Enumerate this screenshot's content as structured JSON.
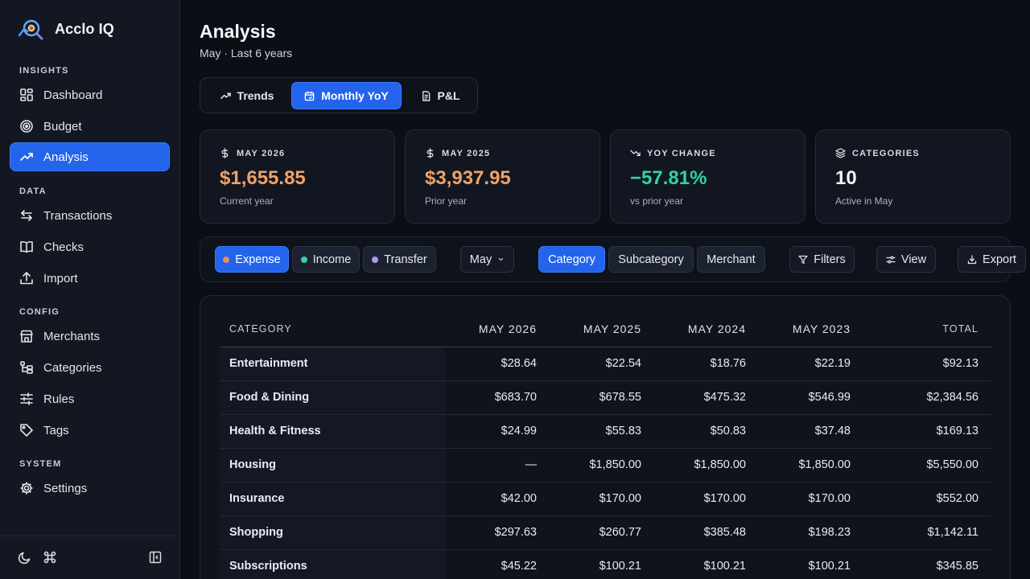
{
  "app": {
    "name": "Acclo IQ"
  },
  "sidebar": {
    "sections": {
      "insights": "INSIGHTS",
      "data": "DATA",
      "config": "CONFIG",
      "system": "SYSTEM"
    },
    "items": [
      {
        "label": "Dashboard",
        "icon": "dashboard-icon"
      },
      {
        "label": "Budget",
        "icon": "target-icon"
      },
      {
        "label": "Analysis",
        "icon": "trend-icon",
        "active": true
      },
      {
        "label": "Transactions",
        "icon": "arrows-swap-icon"
      },
      {
        "label": "Checks",
        "icon": "book-icon"
      },
      {
        "label": "Import",
        "icon": "upload-icon"
      },
      {
        "label": "Merchants",
        "icon": "store-icon"
      },
      {
        "label": "Categories",
        "icon": "tree-icon"
      },
      {
        "label": "Rules",
        "icon": "sliders-icon"
      },
      {
        "label": "Tags",
        "icon": "tag-icon"
      },
      {
        "label": "Settings",
        "icon": "gear-icon"
      }
    ],
    "footer_icons": [
      "moon-icon",
      "command-icon",
      "collapse-sidebar-icon"
    ]
  },
  "page": {
    "title": "Analysis",
    "subtitle": "May · Last 6 years"
  },
  "view_tabs": [
    {
      "label": "Trends",
      "icon": "trend-icon"
    },
    {
      "label": "Monthly YoY",
      "icon": "calendar-icon",
      "active": true
    },
    {
      "label": "P&L",
      "icon": "document-icon"
    }
  ],
  "cards": [
    {
      "label": "MAY 2026",
      "icon": "dollar-icon",
      "value": "$1,655.85",
      "sub": "Current year",
      "color": "#f0a266"
    },
    {
      "label": "MAY 2025",
      "icon": "dollar-icon",
      "value": "$3,937.95",
      "sub": "Prior year",
      "color": "#f0a266"
    },
    {
      "label": "YOY CHANGE",
      "icon": "trend-down-icon",
      "value": "−57.81%",
      "sub": "vs prior year",
      "color": "#2dd4a4"
    },
    {
      "label": "CATEGORIES",
      "icon": "layers-icon",
      "value": "10",
      "sub": "Active in May",
      "color": "#f1f3f7"
    }
  ],
  "toolbar": {
    "types": [
      {
        "label": "Expense",
        "dot": "#f08a5d",
        "active": true
      },
      {
        "label": "Income",
        "dot": "#34d3a6"
      },
      {
        "label": "Transfer",
        "dot": "#a99af5"
      }
    ],
    "month": "May",
    "group_by": [
      {
        "label": "Category",
        "active": true
      },
      {
        "label": "Subcategory"
      },
      {
        "label": "Merchant"
      }
    ],
    "filters_label": "Filters",
    "view_label": "View",
    "export_label": "Export"
  },
  "table": {
    "headers": [
      "CATEGORY",
      "MAY 2026",
      "MAY 2025",
      "MAY 2024",
      "MAY 2023",
      "TOTAL"
    ],
    "rows": [
      [
        "Entertainment",
        "$28.64",
        "$22.54",
        "$18.76",
        "$22.19",
        "$92.13"
      ],
      [
        "Food & Dining",
        "$683.70",
        "$678.55",
        "$475.32",
        "$546.99",
        "$2,384.56"
      ],
      [
        "Health & Fitness",
        "$24.99",
        "$55.83",
        "$50.83",
        "$37.48",
        "$169.13"
      ],
      [
        "Housing",
        "—",
        "$1,850.00",
        "$1,850.00",
        "$1,850.00",
        "$5,550.00"
      ],
      [
        "Insurance",
        "$42.00",
        "$170.00",
        "$170.00",
        "$170.00",
        "$552.00"
      ],
      [
        "Shopping",
        "$297.63",
        "$260.77",
        "$385.48",
        "$198.23",
        "$1,142.11"
      ],
      [
        "Subscriptions",
        "$45.22",
        "$100.21",
        "$100.21",
        "$100.21",
        "$345.85"
      ]
    ]
  },
  "colors": {
    "accent": "#2463eb",
    "positive_amount": "#f0a266",
    "change": "#2dd4a4"
  }
}
